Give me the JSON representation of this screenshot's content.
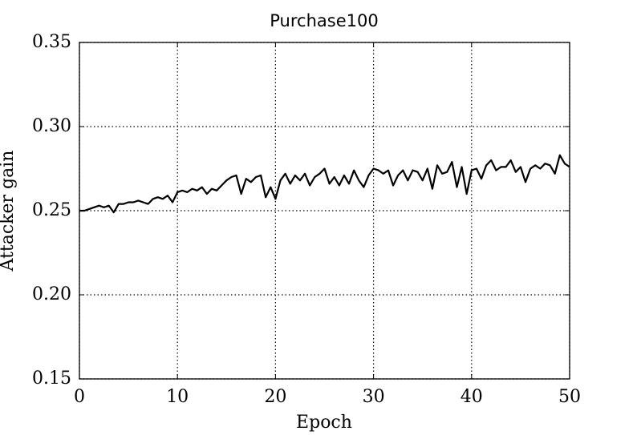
{
  "chart_data": {
    "type": "line",
    "title": "Purchase100",
    "x_label": "Epoch",
    "y_label": "Attacker gain",
    "xlim": [
      0,
      50
    ],
    "ylim": [
      0.15,
      0.35
    ],
    "xticks": [
      0,
      10,
      20,
      30,
      40,
      50
    ],
    "yticks": [
      0.15,
      {
        "value": 0.2,
        "label": "0.20"
      },
      0.25,
      {
        "value": 0.3,
        "label": "0.30"
      },
      0.35
    ],
    "grid": true,
    "series": [
      {
        "color": "#000000",
        "x": [
          0,
          0.5,
          1,
          1.5,
          2,
          2.5,
          3,
          3.5,
          4,
          4.5,
          5,
          5.5,
          6,
          6.5,
          7,
          7.5,
          8,
          8.5,
          9,
          9.5,
          10,
          10.5,
          11,
          11.5,
          12,
          12.5,
          13,
          13.5,
          14,
          14.5,
          15,
          15.5,
          16,
          16.5,
          17,
          17.5,
          18,
          18.5,
          19,
          19.5,
          20,
          20.5,
          21,
          21.5,
          22,
          22.5,
          23,
          23.5,
          24,
          24.5,
          25,
          25.5,
          26,
          26.5,
          27,
          27.5,
          28,
          28.5,
          29,
          29.5,
          30,
          30.5,
          31,
          31.5,
          32,
          32.5,
          33,
          33.5,
          34,
          34.5,
          35,
          35.5,
          36,
          36.5,
          37,
          37.5,
          38,
          38.5,
          39,
          39.5,
          40,
          40.5,
          41,
          41.5,
          42,
          42.5,
          43,
          43.5,
          44,
          44.5,
          45,
          45.5,
          46,
          46.5,
          47,
          47.5,
          48,
          48.5,
          49,
          49.5,
          50
        ],
        "values": [
          0.25,
          0.25,
          0.251,
          0.252,
          0.253,
          0.252,
          0.253,
          0.249,
          0.254,
          0.254,
          0.255,
          0.255,
          0.256,
          0.255,
          0.254,
          0.257,
          0.258,
          0.257,
          0.259,
          0.255,
          0.261,
          0.262,
          0.261,
          0.263,
          0.262,
          0.264,
          0.26,
          0.263,
          0.262,
          0.265,
          0.268,
          0.27,
          0.271,
          0.26,
          0.269,
          0.267,
          0.27,
          0.271,
          0.258,
          0.264,
          0.257,
          0.268,
          0.272,
          0.266,
          0.271,
          0.268,
          0.272,
          0.265,
          0.27,
          0.272,
          0.275,
          0.266,
          0.27,
          0.265,
          0.271,
          0.266,
          0.274,
          0.268,
          0.264,
          0.271,
          0.275,
          0.274,
          0.272,
          0.274,
          0.265,
          0.271,
          0.274,
          0.268,
          0.274,
          0.273,
          0.268,
          0.275,
          0.263,
          0.277,
          0.272,
          0.273,
          0.279,
          0.264,
          0.276,
          0.26,
          0.274,
          0.275,
          0.269,
          0.277,
          0.28,
          0.274,
          0.276,
          0.276,
          0.28,
          0.273,
          0.276,
          0.267,
          0.275,
          0.277,
          0.275,
          0.278,
          0.277,
          0.272,
          0.283,
          0.278,
          0.276
        ]
      }
    ]
  }
}
